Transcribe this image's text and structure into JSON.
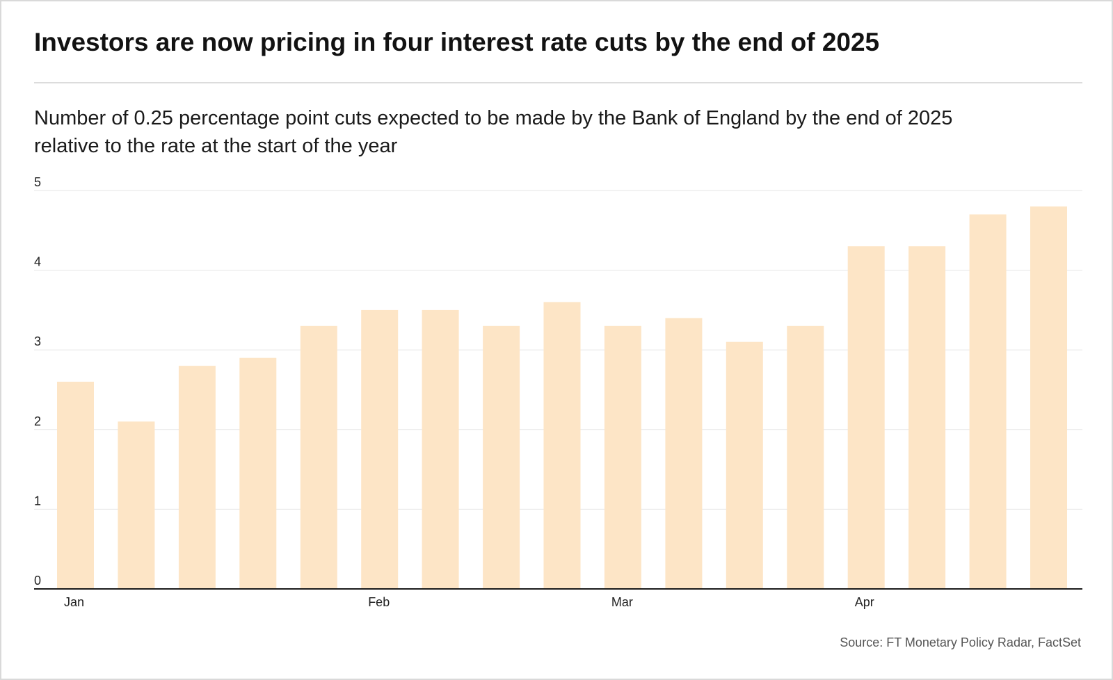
{
  "title": "Investors are now pricing in four interest rate cuts by the end of 2025",
  "subtitle": "Number of 0.25 percentage point cuts expected to be made by the Bank of England by the end of 2025 relative to the rate at the start of the year",
  "source": "Source: FT Monetary Policy Radar, FactSet",
  "colors": {
    "bar": "#fde5c6",
    "grid": "#e6e6e6",
    "axis": "#1a1a1a"
  },
  "chart_data": {
    "type": "bar",
    "title": "",
    "xlabel": "",
    "ylabel": "",
    "ylim": [
      0,
      5
    ],
    "yticks": [
      0,
      1,
      2,
      3,
      4,
      5
    ],
    "grid": true,
    "x_tick_labels": [
      {
        "label": "Jan",
        "index": 0
      },
      {
        "label": "Feb",
        "index": 5
      },
      {
        "label": "Mar",
        "index": 9
      },
      {
        "label": "Apr",
        "index": 13
      }
    ],
    "values": [
      2.6,
      2.1,
      2.8,
      2.9,
      3.3,
      3.5,
      3.5,
      3.3,
      3.6,
      3.3,
      3.4,
      3.1,
      3.3,
      4.3,
      4.3,
      4.7,
      4.8
    ]
  }
}
